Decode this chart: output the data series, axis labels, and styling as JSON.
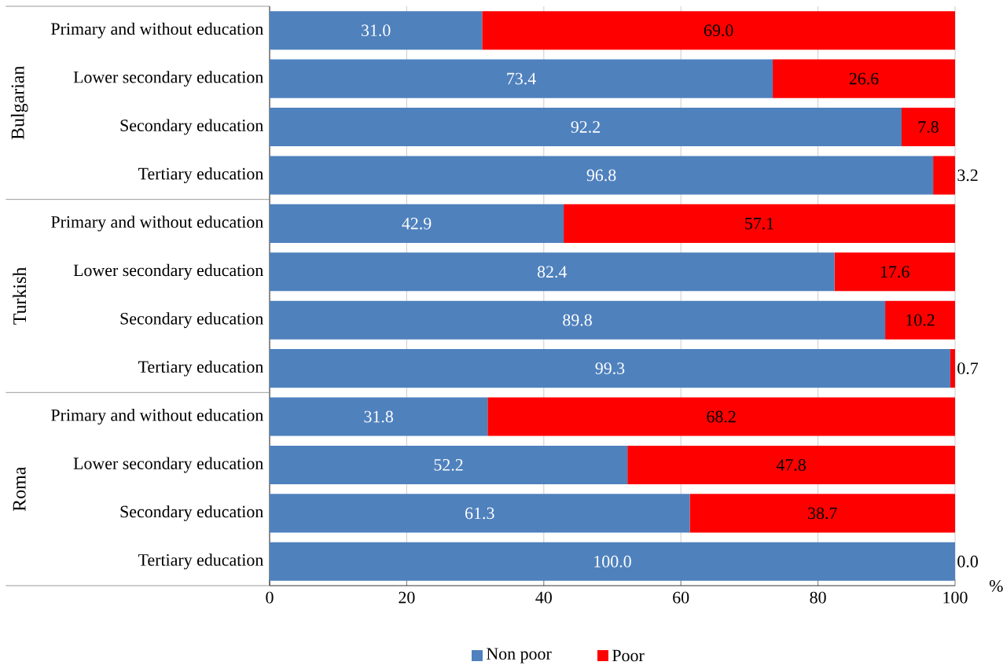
{
  "chart_data": {
    "type": "bar",
    "orientation": "horizontal",
    "stacked": true,
    "categories": [
      "Primary and without education",
      "Lower secondary education",
      "Secondary education",
      "Tertiary education",
      "Primary and without education",
      "Lower secondary education",
      "Secondary education",
      "Tertiary education",
      "Primary and without education",
      "Lower secondary education",
      "Secondary education",
      "Tertiary education"
    ],
    "series": [
      {
        "name": "Non poor",
        "color": "#4f81bd",
        "values": [
          31.0,
          73.4,
          92.2,
          96.8,
          42.9,
          82.4,
          89.8,
          99.3,
          31.8,
          52.2,
          61.3,
          100.0
        ],
        "value_labels": [
          "31.0",
          "73.4",
          "92.2",
          "96.8",
          "42.9",
          "82.4",
          "89.8",
          "99.3",
          "31.8",
          "52.2",
          "61.3",
          "100.0"
        ]
      },
      {
        "name": "Poor",
        "color": "#ff0000",
        "values": [
          69.0,
          26.6,
          7.8,
          3.2,
          57.1,
          17.6,
          10.2,
          0.7,
          68.2,
          47.8,
          38.7,
          0.0
        ],
        "value_labels": [
          "69.0",
          "26.6",
          "7.8",
          "3.2",
          "57.1",
          "17.6",
          "10.2",
          "0.7",
          "68.2",
          "47.8",
          "38.7",
          "0.0"
        ]
      }
    ],
    "annotations": [
      "Bulgarian",
      "Turkish",
      "Roma"
    ],
    "xlabel": "%",
    "xlim": [
      0,
      100
    ],
    "xticks": [
      0,
      20,
      40,
      60,
      80,
      100
    ],
    "grid": "x",
    "legend": "bottom"
  }
}
